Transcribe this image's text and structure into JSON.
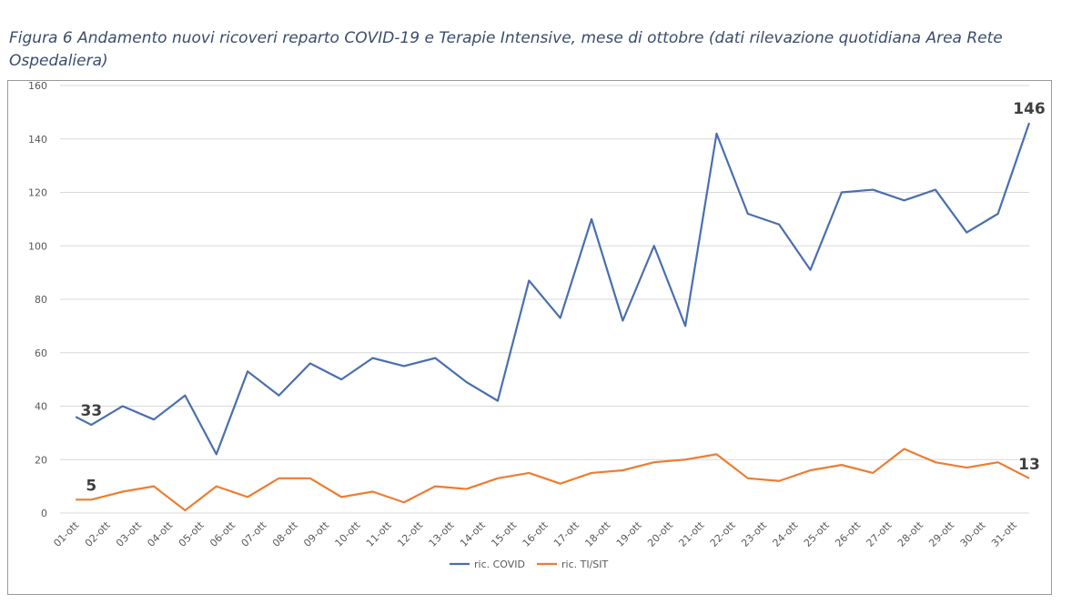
{
  "caption": "Figura 6 Andamento nuovi ricoveri reparto COVID-19 e Terapie Intensive, mese di ottobre (dati rilevazione quotidiana Area Rete Ospedaliera)",
  "chart_data": {
    "type": "line",
    "title": "",
    "xlabel": "",
    "ylabel": "",
    "ylim": [
      0,
      160
    ],
    "yticks": [
      0,
      20,
      40,
      60,
      80,
      100,
      120,
      140,
      160
    ],
    "grid": true,
    "legend_position": "bottom",
    "categories": [
      "01-ott",
      "02-ott",
      "03-ott",
      "04-ott",
      "05-ott",
      "06-ott",
      "07-ott",
      "08-ott",
      "09-ott",
      "10-ott",
      "11-ott",
      "12-ott",
      "13-ott",
      "14-ott",
      "15-ott",
      "16-ott",
      "17-ott",
      "18-ott",
      "19-ott",
      "20-ott",
      "21-ott",
      "22-ott",
      "23-ott",
      "24-ott",
      "25-ott",
      "26-ott",
      "27-ott",
      "28-ott",
      "29-ott",
      "30-ott",
      "31-ott"
    ],
    "series": [
      {
        "name": "ric. COVID",
        "color": "#4a6fae",
        "x": [
          0,
          0.5,
          1.5,
          2.5,
          3.5,
          4.5,
          5.5,
          6.5,
          7.5,
          8.5,
          9.5,
          10.5,
          11.5,
          12.5,
          13.5,
          14.5,
          15.5,
          16.5,
          17.5,
          18.5,
          19.5,
          20.5,
          21.5,
          22.5,
          23.5,
          24.5,
          25.5,
          26.5,
          27.5,
          28.5,
          29.5,
          30.5
        ],
        "values": [
          36,
          33,
          40,
          35,
          44,
          22,
          53,
          44,
          56,
          50,
          58,
          55,
          58,
          49,
          42,
          87,
          73,
          110,
          72,
          100,
          70,
          142,
          112,
          108,
          91,
          120,
          121,
          117,
          121,
          105,
          112,
          146
        ]
      },
      {
        "name": "ric. TI/SIT",
        "color": "#ed7d31",
        "x": [
          0,
          0.5,
          1.5,
          2.5,
          3.5,
          4.5,
          5.5,
          6.5,
          7.5,
          8.5,
          9.5,
          10.5,
          11.5,
          12.5,
          13.5,
          14.5,
          15.5,
          16.5,
          17.5,
          18.5,
          19.5,
          20.5,
          21.5,
          22.5,
          23.5,
          24.5,
          25.5,
          26.5,
          27.5,
          28.5,
          29.5,
          30.5
        ],
        "values": [
          5,
          5,
          8,
          10,
          1,
          10,
          6,
          13,
          13,
          6,
          8,
          4,
          10,
          9,
          13,
          15,
          11,
          15,
          16,
          19,
          20,
          22,
          13,
          12,
          16,
          18,
          15,
          24,
          19,
          17,
          19,
          13
        ]
      }
    ],
    "data_labels": [
      {
        "series": 0,
        "point": 1,
        "text": "33"
      },
      {
        "series": 1,
        "point": 1,
        "text": "5"
      },
      {
        "series": 0,
        "point": 31,
        "text": "146"
      },
      {
        "series": 1,
        "point": 31,
        "text": "13"
      }
    ]
  }
}
